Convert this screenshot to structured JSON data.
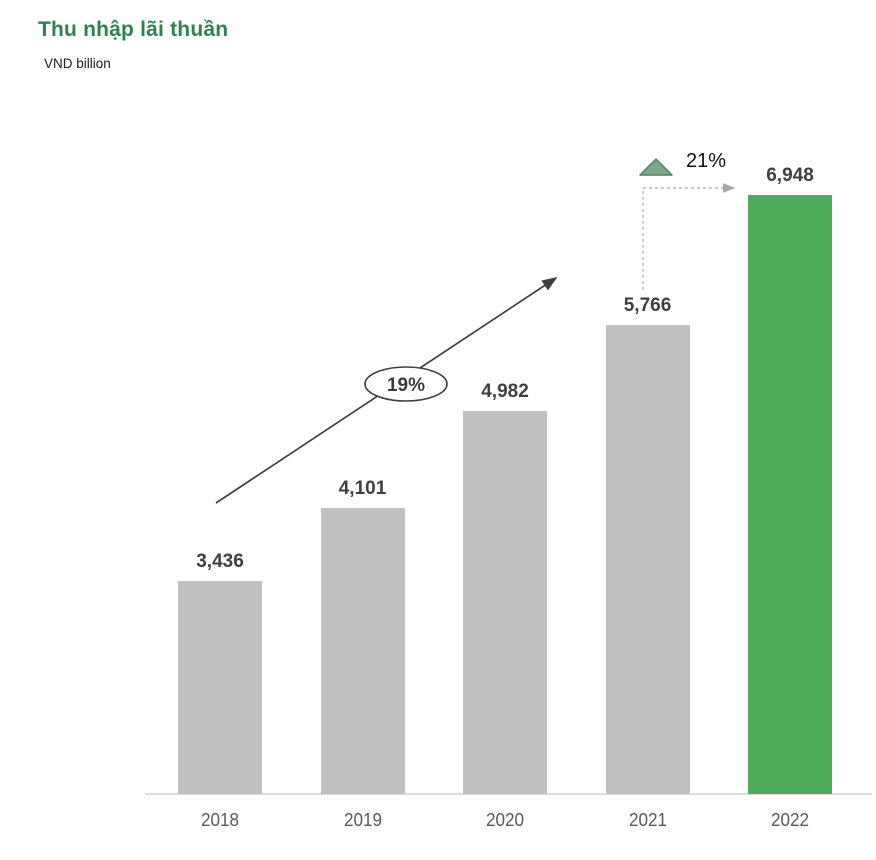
{
  "header": {
    "title": "Thu nhập lãi thuần",
    "subtitle": "VND billion"
  },
  "chart_data": {
    "type": "bar",
    "title": "Thu nhập lãi thuần",
    "subtitle_unit": "VND billion",
    "categories": [
      "2018",
      "2019",
      "2020",
      "2021",
      "2022"
    ],
    "values": [
      3436,
      4101,
      4982,
      5766,
      6948
    ],
    "value_labels": [
      "3,436",
      "4,101",
      "4,982",
      "5,766",
      "6,948"
    ],
    "highlight_index": 4,
    "xlabel": "",
    "ylabel": "VND billion",
    "grid": false,
    "legend": false,
    "colors": {
      "bar_default": "#c0c0c0",
      "bar_highlight": "#4ead5b",
      "title_green": "#2e8250",
      "value_label": "#3f3f3f",
      "year_label": "#595959",
      "axis_line": "#dcdcdc",
      "trend_arrow": "#3f3f3f",
      "dashed_connector": "#b9b9b9",
      "triangle_fill": "#7aa98c",
      "triangle_stroke": "#55815f"
    },
    "annotations": {
      "trend_growth_label": "19%",
      "trend_growth_note": "CAGR trend arrow across 2018-2021 bars",
      "yoy_growth_label": "21%",
      "yoy_icon": "triangle-up-icon"
    }
  }
}
